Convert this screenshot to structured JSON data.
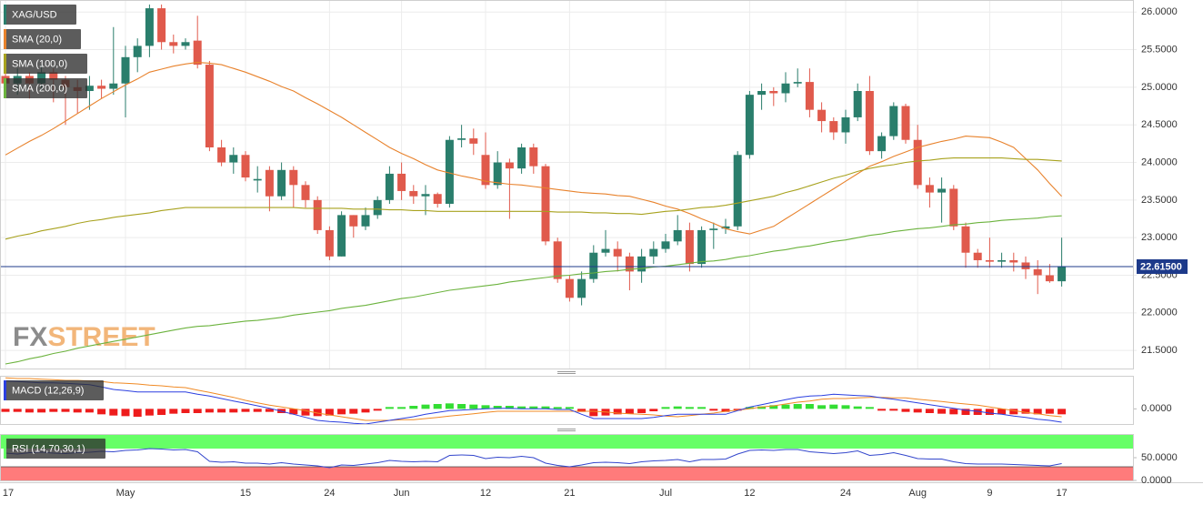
{
  "chart_data": {
    "type": "candlestick",
    "symbol": "XAG/USD",
    "categories": [
      "17",
      null,
      null,
      null,
      null,
      null,
      null,
      null,
      null,
      null,
      "May",
      null,
      null,
      null,
      null,
      null,
      null,
      null,
      null,
      null,
      "15",
      null,
      null,
      null,
      null,
      null,
      null,
      "24",
      null,
      null,
      null,
      null,
      null,
      "Jun",
      null,
      null,
      null,
      null,
      null,
      null,
      "12",
      null,
      null,
      null,
      null,
      null,
      null,
      "21",
      null,
      null,
      null,
      null,
      null,
      null,
      null,
      "Jul",
      null,
      null,
      null,
      null,
      null,
      null,
      "12",
      null,
      null,
      null,
      null,
      null,
      null,
      null,
      "24",
      null,
      null,
      null,
      null,
      null,
      "Aug",
      null,
      null,
      null,
      null,
      null,
      "9",
      null,
      null,
      null,
      null,
      null,
      "17"
    ],
    "open": [
      25.15,
      25.05,
      25.15,
      25.05,
      25.2,
      25.1,
      25.0,
      24.95,
      25.02,
      24.98,
      25.05,
      25.4,
      25.55,
      26.05,
      25.6,
      25.55,
      25.62,
      25.3,
      24.2,
      24.0,
      24.1,
      23.76,
      23.9,
      23.55,
      23.9,
      23.7,
      23.5,
      23.1,
      22.75,
      23.3,
      23.15,
      23.3,
      23.5,
      23.85,
      23.62,
      23.55,
      23.58,
      23.45,
      24.3,
      24.32,
      24.1,
      23.7,
      24.0,
      23.92,
      24.2,
      23.95,
      22.95,
      22.45,
      22.2,
      22.45,
      22.8,
      22.85,
      22.75,
      22.55,
      22.75,
      22.85,
      22.95,
      23.1,
      22.65,
      23.1,
      23.12,
      23.15,
      24.1,
      24.9,
      24.95,
      24.92,
      25.05,
      25.07,
      24.7,
      24.55,
      24.4,
      24.6,
      24.95,
      24.15,
      24.35,
      24.75,
      24.3,
      23.7,
      23.6,
      23.65,
      23.15,
      22.8,
      22.7,
      22.68,
      22.7,
      22.67,
      22.58,
      22.5,
      22.42
    ],
    "high": [
      25.35,
      25.25,
      25.2,
      25.3,
      25.25,
      25.15,
      25.1,
      25.15,
      25.1,
      25.8,
      25.55,
      25.65,
      26.1,
      26.1,
      25.7,
      25.65,
      25.95,
      25.35,
      24.3,
      24.2,
      24.15,
      23.95,
      23.95,
      24.0,
      23.95,
      23.75,
      23.55,
      23.15,
      23.35,
      23.3,
      23.4,
      23.55,
      23.95,
      24.0,
      23.7,
      23.7,
      23.6,
      24.35,
      24.5,
      24.45,
      24.4,
      24.15,
      24.05,
      24.25,
      24.25,
      23.98,
      23.0,
      22.5,
      22.55,
      22.9,
      23.1,
      22.95,
      22.8,
      22.85,
      22.95,
      23.05,
      23.3,
      23.2,
      23.15,
      23.2,
      23.25,
      24.15,
      24.95,
      25.05,
      25.0,
      25.2,
      25.25,
      25.25,
      24.8,
      24.6,
      24.7,
      25.05,
      25.15,
      24.4,
      24.8,
      24.78,
      24.5,
      23.8,
      23.8,
      23.7,
      23.2,
      22.85,
      23.0,
      22.8,
      22.8,
      22.75,
      22.7,
      22.65,
      23.0
    ],
    "low": [
      24.95,
      24.9,
      24.85,
      24.95,
      24.8,
      24.5,
      24.65,
      24.7,
      24.85,
      24.9,
      24.6,
      25.2,
      25.4,
      25.5,
      25.45,
      25.5,
      25.25,
      24.15,
      23.95,
      23.85,
      23.75,
      23.6,
      23.35,
      23.5,
      23.4,
      23.4,
      23.05,
      22.7,
      22.75,
      23.0,
      23.1,
      23.25,
      23.45,
      23.5,
      23.45,
      23.3,
      23.4,
      23.4,
      24.2,
      24.1,
      23.65,
      23.65,
      23.25,
      23.85,
      23.85,
      22.9,
      22.4,
      22.15,
      22.1,
      22.4,
      22.75,
      22.55,
      22.3,
      22.4,
      22.65,
      22.8,
      22.9,
      22.55,
      22.6,
      22.85,
      23.05,
      23.1,
      24.05,
      24.7,
      24.75,
      24.8,
      25.0,
      24.6,
      24.4,
      24.3,
      24.25,
      24.55,
      24.1,
      24.05,
      24.3,
      24.25,
      23.65,
      23.4,
      23.2,
      23.1,
      22.6,
      22.6,
      22.6,
      22.6,
      22.55,
      22.45,
      22.25,
      22.4,
      22.35
    ],
    "close": [
      25.05,
      25.15,
      25.05,
      25.2,
      25.1,
      25.0,
      24.95,
      25.02,
      24.98,
      25.05,
      25.4,
      25.55,
      26.05,
      25.6,
      25.55,
      25.6,
      25.3,
      24.2,
      24.0,
      24.1,
      23.8,
      23.78,
      23.55,
      23.9,
      23.7,
      23.5,
      23.1,
      22.75,
      23.3,
      23.15,
      23.3,
      23.5,
      23.85,
      23.62,
      23.55,
      23.58,
      23.45,
      24.3,
      24.32,
      24.25,
      23.7,
      24.0,
      23.92,
      24.2,
      23.95,
      22.95,
      22.45,
      22.2,
      22.45,
      22.8,
      22.85,
      22.75,
      22.55,
      22.75,
      22.85,
      22.95,
      23.1,
      22.65,
      23.1,
      23.12,
      23.15,
      24.1,
      24.9,
      24.95,
      24.92,
      25.05,
      25.07,
      24.7,
      24.55,
      24.4,
      24.6,
      24.95,
      24.15,
      24.35,
      24.75,
      24.3,
      23.7,
      23.6,
      23.65,
      23.15,
      22.8,
      22.7,
      22.68,
      22.7,
      22.67,
      22.58,
      22.5,
      22.42,
      22.615
    ],
    "up_color": "#2a7e6c",
    "down_color": "#e05a4c",
    "ylim": [
      21.26,
      26.16
    ],
    "yticks": [
      {
        "value": 26,
        "label": "26.0000"
      },
      {
        "value": 25.5,
        "label": "25.5000"
      },
      {
        "value": 25,
        "label": "25.0000"
      },
      {
        "value": 24.5,
        "label": "24.5000"
      },
      {
        "value": 24,
        "label": "24.0000"
      },
      {
        "value": 23.5,
        "label": "23.5000"
      },
      {
        "value": 23,
        "label": "23.0000"
      },
      {
        "value": 22.5,
        "label": "22.5000"
      },
      {
        "value": 22,
        "label": "22.0000"
      },
      {
        "value": 21.5,
        "label": "21.5000"
      }
    ],
    "grid": true,
    "current_price": {
      "value": 22.615,
      "label": "22.61500",
      "color": "#1d3a8a"
    },
    "watermark": [
      "FX",
      "STREET"
    ],
    "overlays": [
      {
        "name": "SMA (20,0)",
        "color": "#e8822c",
        "values": [
          24.1,
          24.19,
          24.28,
          24.36,
          24.45,
          24.55,
          24.65,
          24.75,
          24.85,
          24.94,
          25.03,
          25.11,
          25.2,
          25.24,
          25.28,
          25.31,
          25.33,
          25.32,
          25.3,
          25.25,
          25.2,
          25.14,
          25.08,
          25.01,
          24.95,
          24.86,
          24.78,
          24.69,
          24.6,
          24.5,
          24.4,
          24.3,
          24.2,
          24.12,
          24.05,
          23.97,
          23.9,
          23.86,
          23.82,
          23.79,
          23.75,
          23.73,
          23.71,
          23.7,
          23.68,
          23.66,
          23.64,
          23.62,
          23.6,
          23.59,
          23.58,
          23.56,
          23.55,
          23.51,
          23.47,
          23.42,
          23.38,
          23.32,
          23.25,
          23.19,
          23.12,
          23.08,
          23.05,
          23.1,
          23.15,
          23.25,
          23.35,
          23.45,
          23.55,
          23.65,
          23.75,
          23.85,
          23.95,
          24.01,
          24.08,
          24.14,
          24.2,
          24.24,
          24.28,
          24.31,
          24.35,
          24.34,
          24.33,
          24.27,
          24.2,
          24.05,
          23.9,
          23.72,
          23.55
        ]
      },
      {
        "name": "SMA (100,0)",
        "color": "#a8a21e",
        "values": [
          22.98,
          23.02,
          23.05,
          23.09,
          23.12,
          23.15,
          23.19,
          23.22,
          23.24,
          23.27,
          23.29,
          23.31,
          23.33,
          23.36,
          23.38,
          23.4,
          23.4,
          23.4,
          23.4,
          23.4,
          23.4,
          23.4,
          23.4,
          23.4,
          23.4,
          23.39,
          23.39,
          23.39,
          23.39,
          23.38,
          23.38,
          23.38,
          23.37,
          23.37,
          23.36,
          23.36,
          23.35,
          23.35,
          23.35,
          23.35,
          23.35,
          23.35,
          23.35,
          23.35,
          23.35,
          23.35,
          23.34,
          23.34,
          23.34,
          23.33,
          23.33,
          23.32,
          23.32,
          23.31,
          23.33,
          23.35,
          23.36,
          23.38,
          23.4,
          23.41,
          23.43,
          23.46,
          23.49,
          23.52,
          23.55,
          23.6,
          23.64,
          23.69,
          23.74,
          23.79,
          23.83,
          23.88,
          23.92,
          23.95,
          23.97,
          24.0,
          24.02,
          24.03,
          24.05,
          24.06,
          24.06,
          24.06,
          24.06,
          24.06,
          24.05,
          24.04,
          24.04,
          24.03,
          24.02
        ]
      },
      {
        "name": "SMA (200,0)",
        "color": "#6cb33e",
        "values": [
          21.32,
          21.35,
          21.39,
          21.42,
          21.46,
          21.49,
          21.53,
          21.56,
          21.59,
          21.62,
          21.65,
          21.68,
          21.71,
          21.74,
          21.77,
          21.8,
          21.82,
          21.83,
          21.85,
          21.87,
          21.89,
          21.9,
          21.92,
          21.94,
          21.97,
          21.99,
          22.01,
          22.03,
          22.06,
          22.08,
          22.1,
          22.13,
          22.16,
          22.19,
          22.21,
          22.24,
          22.27,
          22.3,
          22.32,
          22.34,
          22.36,
          22.38,
          22.41,
          22.43,
          22.45,
          22.47,
          22.49,
          22.5,
          22.52,
          22.53,
          22.55,
          22.56,
          22.58,
          22.59,
          22.61,
          22.62,
          22.64,
          22.66,
          22.68,
          22.69,
          22.71,
          22.74,
          22.76,
          22.79,
          22.82,
          22.84,
          22.87,
          22.89,
          22.92,
          22.95,
          22.97,
          23.0,
          23.03,
          23.05,
          23.08,
          23.1,
          23.12,
          23.13,
          23.15,
          23.17,
          23.18,
          23.2,
          23.21,
          23.23,
          23.24,
          23.25,
          23.26,
          23.28,
          23.29
        ]
      }
    ],
    "macd": {
      "type": "macd",
      "label": "MACD (12,26,9)",
      "ylim": [
        -0.25,
        0.53
      ],
      "yticks": [
        {
          "value": 0,
          "label": "0.0000"
        }
      ],
      "macd": {
        "color": "#2b3fe0",
        "values": [
          0.46,
          0.45,
          0.44,
          0.43,
          0.43,
          0.42,
          0.41,
          0.4,
          0.36,
          0.32,
          0.3,
          0.28,
          0.28,
          0.28,
          0.28,
          0.28,
          0.24,
          0.21,
          0.17,
          0.13,
          0.09,
          0.05,
          0.01,
          -0.04,
          -0.09,
          -0.14,
          -0.19,
          -0.21,
          -0.22,
          -0.24,
          -0.25,
          -0.22,
          -0.19,
          -0.16,
          -0.13,
          -0.09,
          -0.06,
          -0.03,
          -0.02,
          -0.01,
          0.0,
          0.01,
          0.01,
          0.0,
          0.0,
          0.0,
          -0.01,
          -0.01,
          -0.09,
          -0.16,
          -0.16,
          -0.16,
          -0.16,
          -0.16,
          -0.14,
          -0.11,
          -0.09,
          -0.09,
          -0.09,
          -0.09,
          -0.09,
          -0.03,
          0.03,
          0.07,
          0.11,
          0.15,
          0.19,
          0.21,
          0.22,
          0.24,
          0.23,
          0.22,
          0.21,
          0.18,
          0.16,
          0.13,
          0.1,
          0.07,
          0.04,
          0.01,
          -0.02,
          -0.04,
          -0.07,
          -0.09,
          -0.12,
          -0.14,
          -0.17,
          -0.19,
          -0.22
        ]
      },
      "signal": {
        "color": "#f08a24",
        "values": [
          0.51,
          0.5,
          0.5,
          0.49,
          0.48,
          0.47,
          0.47,
          0.46,
          0.45,
          0.43,
          0.42,
          0.41,
          0.39,
          0.38,
          0.36,
          0.35,
          0.31,
          0.27,
          0.23,
          0.19,
          0.14,
          0.1,
          0.06,
          0.03,
          0.0,
          -0.03,
          -0.07,
          -0.1,
          -0.13,
          -0.16,
          -0.19,
          -0.19,
          -0.19,
          -0.18,
          -0.18,
          -0.16,
          -0.14,
          -0.12,
          -0.1,
          -0.08,
          -0.06,
          -0.04,
          -0.04,
          -0.04,
          -0.04,
          -0.04,
          -0.04,
          -0.04,
          -0.04,
          -0.04,
          -0.05,
          -0.07,
          -0.08,
          -0.09,
          -0.1,
          -0.12,
          -0.13,
          -0.11,
          -0.09,
          -0.07,
          -0.04,
          -0.02,
          0.0,
          0.03,
          0.05,
          0.08,
          0.11,
          0.13,
          0.16,
          0.17,
          0.17,
          0.18,
          0.19,
          0.19,
          0.18,
          0.18,
          0.16,
          0.14,
          0.12,
          0.1,
          0.08,
          0.06,
          0.03,
          0.0,
          -0.03,
          -0.06,
          -0.08,
          -0.11,
          -0.13
        ]
      },
      "histogram": {
        "up_color": "#33dd33",
        "down_color": "#ee1c1c",
        "values": [
          -0.05,
          -0.05,
          -0.06,
          -0.06,
          -0.05,
          -0.05,
          -0.06,
          -0.06,
          -0.09,
          -0.11,
          -0.12,
          -0.13,
          -0.11,
          -0.1,
          -0.08,
          -0.07,
          -0.07,
          -0.06,
          -0.06,
          -0.06,
          -0.05,
          -0.05,
          -0.05,
          -0.07,
          -0.09,
          -0.11,
          -0.12,
          -0.11,
          -0.09,
          -0.08,
          -0.06,
          -0.03,
          0.0,
          0.02,
          0.05,
          0.07,
          0.08,
          0.09,
          0.08,
          0.07,
          0.06,
          0.05,
          0.05,
          0.04,
          0.04,
          0.04,
          0.03,
          0.03,
          -0.05,
          -0.12,
          -0.11,
          -0.09,
          -0.08,
          -0.07,
          -0.04,
          0.01,
          0.04,
          0.02,
          0.0,
          -0.02,
          -0.05,
          -0.01,
          0.03,
          0.04,
          0.06,
          0.07,
          0.08,
          0.08,
          0.06,
          0.07,
          0.06,
          0.04,
          0.02,
          -0.01,
          -0.02,
          -0.05,
          -0.06,
          -0.07,
          -0.08,
          -0.09,
          -0.1,
          -0.1,
          -0.1,
          -0.09,
          -0.09,
          -0.08,
          -0.09,
          -0.08,
          -0.09
        ]
      }
    },
    "rsi": {
      "type": "line",
      "label": "RSI (14,70,30,1)",
      "ylim": [
        0,
        100
      ],
      "yticks": [
        {
          "value": 0,
          "label": "0.0000"
        },
        {
          "value": 50,
          "label": "50.0000"
        }
      ],
      "overbought": 70,
      "oversold": 30,
      "overbought_color": "#66ff66",
      "oversold_color": "#ff7b7b",
      "color": "#3346cc",
      "values": [
        60,
        58,
        61,
        62,
        60,
        59,
        61,
        62,
        64,
        63,
        66,
        67,
        70,
        69,
        67,
        68,
        63,
        42,
        40,
        41,
        38,
        38,
        36,
        39,
        36,
        34,
        32,
        28,
        34,
        33,
        36,
        39,
        44,
        42,
        41,
        42,
        41,
        55,
        56,
        55,
        48,
        51,
        50,
        53,
        50,
        38,
        33,
        30,
        34,
        39,
        40,
        39,
        37,
        41,
        43,
        44,
        46,
        41,
        46,
        46,
        47,
        58,
        66,
        67,
        66,
        68,
        68,
        63,
        61,
        59,
        61,
        65,
        55,
        57,
        61,
        55,
        48,
        47,
        47,
        41,
        37,
        36,
        36,
        36,
        35,
        34,
        33,
        32,
        37
      ]
    }
  }
}
